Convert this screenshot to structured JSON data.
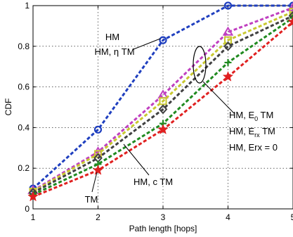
{
  "chart_data": {
    "type": "line",
    "xlabel": "Path length [hops]",
    "ylabel": "CDF",
    "xlim": [
      1,
      5
    ],
    "ylim": [
      0,
      1
    ],
    "xticks": [
      "1",
      "2",
      "3",
      "4",
      "5"
    ],
    "yticks": [
      "0",
      "0.2",
      "0.4",
      "0.6",
      "0.8",
      "1"
    ],
    "grid": true,
    "x": [
      1,
      2,
      3,
      4,
      5
    ],
    "series": [
      {
        "values": [
          0.1,
          0.39,
          0.83,
          1.0,
          1.0
        ],
        "color": "#1f3fbf",
        "marker": "circle"
      },
      {
        "values": [
          0.09,
          0.28,
          0.56,
          0.87,
          0.99
        ],
        "color": "#c040c0",
        "marker": "triangle"
      },
      {
        "values": [
          0.085,
          0.27,
          0.53,
          0.83,
          0.97
        ],
        "color": "#c8c830",
        "marker": "square"
      },
      {
        "values": [
          0.08,
          0.25,
          0.49,
          0.8,
          0.95
        ],
        "color": "#404040",
        "marker": "diamond"
      },
      {
        "values": [
          0.07,
          0.22,
          0.42,
          0.72,
          0.94
        ],
        "color": "#208a20",
        "marker": "plus"
      },
      {
        "values": [
          0.06,
          0.19,
          0.39,
          0.65,
          0.92
        ],
        "color": "#e02020",
        "marker": "star"
      }
    ],
    "annotations": [
      {
        "id": "hm-top",
        "text": "HM"
      },
      {
        "id": "hm-eta",
        "text": "HM, η TM"
      },
      {
        "id": "hm-e0",
        "text": "HM, E",
        "sub": "0",
        "rest": " TM"
      },
      {
        "id": "hm-erx",
        "text": "HM, E",
        "sub": "rx",
        "rest": " TM"
      },
      {
        "id": "hm-erx0",
        "text": "HM, Erx = 0"
      },
      {
        "id": "hm-c",
        "text": "HM, c TM"
      },
      {
        "id": "tm",
        "text": "TM"
      }
    ]
  }
}
